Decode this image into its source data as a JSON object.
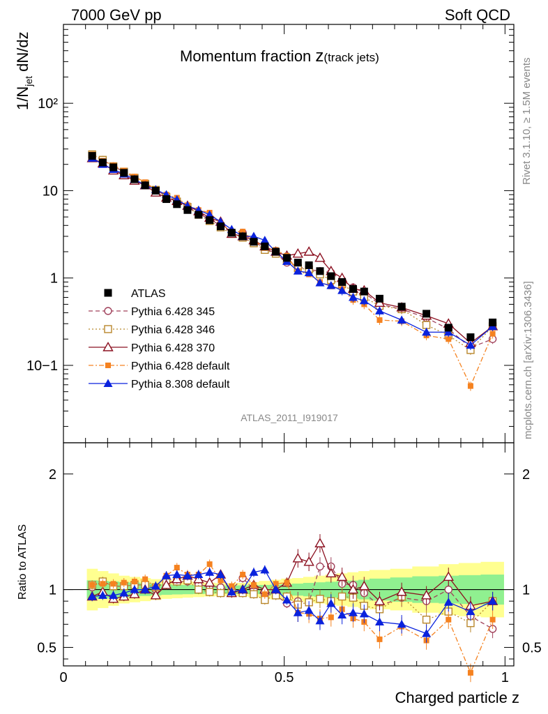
{
  "header": {
    "left": "7000 GeV pp",
    "right": "Soft QCD"
  },
  "side": {
    "rivet": "Rivet 3.1.10, ≥ 1.5M events",
    "mcplots": "mcplots.cern.ch [arXiv:1306.3436]"
  },
  "colors": {
    "atlas": "#000000",
    "p345": "#a0405a",
    "p346": "#b8862a",
    "p370": "#8b1020",
    "p6def": "#f58220",
    "p8def": "#0a22dd",
    "band_inner": "#90f090",
    "band_outer": "#ffff90"
  },
  "chart_data": [
    {
      "type": "line",
      "panel": "main",
      "title_main": "Momentum fraction ",
      "title_z": "z",
      "title_sub": "(track jets)",
      "ylabel": "1/N_jet dN/dz",
      "ylabel_main": "1/N",
      "ylabel_sub": "jet",
      "ylabel_tail": " dN/dz",
      "yscale": "log",
      "ylim": [
        0.013,
        800
      ],
      "xlim": [
        0,
        1.02
      ],
      "ytick_labels": [
        "10−1",
        "1",
        "10",
        "10²"
      ],
      "watermark": "ATLAS_2011_I919017",
      "legend_position": "bottom-left",
      "x": [
        0.065,
        0.089,
        0.113,
        0.137,
        0.161,
        0.185,
        0.209,
        0.233,
        0.257,
        0.281,
        0.306,
        0.331,
        0.356,
        0.381,
        0.406,
        0.431,
        0.456,
        0.481,
        0.506,
        0.531,
        0.556,
        0.581,
        0.606,
        0.631,
        0.656,
        0.681,
        0.716,
        0.766,
        0.822,
        0.872,
        0.922,
        0.972
      ],
      "series": [
        {
          "name": "ATLAS",
          "key": "atlas",
          "marker": "square-filled",
          "line": "none",
          "values": [
            25.0,
            21.0,
            18.5,
            16.0,
            13.5,
            11.5,
            10.0,
            8.0,
            7.0,
            6.0,
            5.3,
            4.6,
            3.9,
            3.3,
            3.0,
            2.6,
            2.3,
            2.0,
            1.7,
            1.5,
            1.4,
            1.2,
            1.05,
            0.9,
            0.75,
            0.7,
            0.58,
            0.47,
            0.39,
            0.27,
            0.21,
            0.31
          ]
        },
        {
          "name": "Pythia 6.428 345",
          "key": "p345",
          "marker": "circle-open",
          "line": "dashed",
          "values": [
            25.5,
            22.5,
            19.0,
            16.5,
            14.0,
            12.0,
            10.0,
            8.8,
            7.5,
            6.4,
            5.5,
            4.7,
            4.0,
            3.3,
            3.3,
            2.6,
            2.2,
            1.9,
            1.5,
            1.35,
            1.25,
            1.2,
            1.15,
            0.95,
            0.78,
            0.68,
            0.5,
            0.44,
            0.35,
            0.26,
            0.16,
            0.2
          ]
        },
        {
          "name": "Pythia 6.428 346",
          "key": "p346",
          "marker": "square-open",
          "line": "dotted",
          "values": [
            26.0,
            22.5,
            19.0,
            16.5,
            14.0,
            12.0,
            10.2,
            8.5,
            7.5,
            6.5,
            5.3,
            4.5,
            3.8,
            3.2,
            2.9,
            2.5,
            2.1,
            1.9,
            1.6,
            1.3,
            1.25,
            1.1,
            0.95,
            0.85,
            0.7,
            0.6,
            0.48,
            0.44,
            0.29,
            0.22,
            0.15,
            0.28
          ]
        },
        {
          "name": "Pythia 6.428 370",
          "key": "p370",
          "marker": "triangle-open",
          "line": "solid",
          "values": [
            23.5,
            20.5,
            17.0,
            15.0,
            13.0,
            11.5,
            9.5,
            8.3,
            7.6,
            6.7,
            5.8,
            4.9,
            4.4,
            3.2,
            3.0,
            2.7,
            2.3,
            2.0,
            1.8,
            1.9,
            2.0,
            1.7,
            1.2,
            1.0,
            0.75,
            0.72,
            0.52,
            0.46,
            0.37,
            0.3,
            0.18,
            0.28
          ]
        },
        {
          "name": "Pythia 6.428 default",
          "key": "p6def",
          "marker": "square-small-filled",
          "line": "dashdot",
          "values": [
            26.0,
            22.0,
            19.5,
            17.0,
            14.5,
            12.5,
            10.2,
            9.0,
            8.3,
            6.8,
            6.0,
            5.6,
            4.2,
            3.4,
            3.4,
            2.7,
            2.2,
            2.1,
            1.8,
            1.2,
            1.1,
            0.9,
            0.8,
            0.75,
            0.56,
            0.5,
            0.33,
            0.32,
            0.22,
            0.2,
            0.058,
            0.23
          ]
        },
        {
          "name": "Pythia 8.308 default",
          "key": "p8def",
          "marker": "triangle-filled",
          "line": "solid",
          "values": [
            23.5,
            20.0,
            17.5,
            15.5,
            13.5,
            11.5,
            10.3,
            9.0,
            7.9,
            6.7,
            6.0,
            5.3,
            4.4,
            3.6,
            3.0,
            3.0,
            2.7,
            2.0,
            1.55,
            1.2,
            1.15,
            0.88,
            0.82,
            0.72,
            0.6,
            0.55,
            0.42,
            0.33,
            0.24,
            0.24,
            0.17,
            0.28
          ]
        }
      ]
    },
    {
      "type": "line",
      "panel": "ratio",
      "ylabel": "Ratio to ATLAS",
      "xlabel": "Charged particle z",
      "ylim": [
        0.34,
        2.27
      ],
      "xlim": [
        0,
        1.02
      ],
      "ytick_labels": [
        "0.5",
        "1",
        "2"
      ],
      "xtick_labels": [
        "0",
        "0.5",
        "1"
      ],
      "band_x_edges": [
        0.053,
        0.077,
        0.101,
        0.125,
        0.149,
        0.173,
        0.197,
        0.221,
        0.245,
        0.269,
        0.293,
        0.318,
        0.343,
        0.368,
        0.393,
        0.418,
        0.443,
        0.468,
        0.493,
        0.518,
        0.543,
        0.568,
        0.593,
        0.618,
        0.643,
        0.668,
        0.693,
        0.74,
        0.79,
        0.85,
        0.895,
        0.945,
        0.997
      ],
      "band_inner_half": [
        0.08,
        0.075,
        0.07,
        0.065,
        0.06,
        0.055,
        0.05,
        0.045,
        0.042,
        0.04,
        0.038,
        0.036,
        0.035,
        0.035,
        0.036,
        0.038,
        0.04,
        0.043,
        0.047,
        0.052,
        0.058,
        0.063,
        0.068,
        0.073,
        0.078,
        0.085,
        0.095,
        0.105,
        0.115,
        0.12,
        0.125,
        0.13
      ],
      "band_outer_half": [
        0.18,
        0.16,
        0.14,
        0.12,
        0.11,
        0.1,
        0.09,
        0.08,
        0.075,
        0.07,
        0.065,
        0.06,
        0.055,
        0.055,
        0.058,
        0.065,
        0.075,
        0.085,
        0.095,
        0.1,
        0.11,
        0.12,
        0.13,
        0.14,
        0.15,
        0.16,
        0.17,
        0.18,
        0.2,
        0.22,
        0.23,
        0.24
      ],
      "x": [
        0.065,
        0.089,
        0.113,
        0.137,
        0.161,
        0.185,
        0.209,
        0.233,
        0.257,
        0.281,
        0.306,
        0.331,
        0.356,
        0.381,
        0.406,
        0.431,
        0.456,
        0.481,
        0.506,
        0.531,
        0.556,
        0.581,
        0.606,
        0.631,
        0.656,
        0.681,
        0.716,
        0.766,
        0.822,
        0.872,
        0.922,
        0.972
      ],
      "series": [
        {
          "key": "p345",
          "values": [
            1.02,
            1.07,
            1.03,
            1.03,
            1.04,
            1.04,
            1.0,
            1.1,
            1.07,
            1.07,
            1.04,
            1.03,
            1.02,
            1.0,
            1.1,
            1.0,
            0.96,
            0.95,
            0.88,
            0.9,
            0.89,
            1.2,
            1.2,
            1.05,
            1.04,
            0.97,
            0.86,
            0.93,
            0.9,
            1.0,
            0.77,
            0.66
          ]
        },
        {
          "key": "p346",
          "values": [
            1.04,
            1.07,
            1.03,
            1.03,
            1.04,
            1.04,
            1.02,
            1.06,
            1.07,
            1.08,
            1.0,
            0.98,
            0.97,
            0.97,
            0.97,
            0.96,
            0.91,
            0.95,
            0.94,
            0.87,
            0.89,
            0.92,
            0.9,
            0.94,
            0.93,
            0.86,
            0.83,
            0.94,
            0.74,
            0.81,
            0.71,
            0.9
          ]
        },
        {
          "key": "p370",
          "values": [
            0.94,
            0.98,
            0.92,
            0.94,
            0.96,
            1.0,
            0.95,
            1.04,
            1.09,
            1.12,
            1.09,
            1.06,
            1.13,
            0.97,
            1.0,
            1.04,
            1.0,
            1.0,
            1.06,
            1.27,
            1.24,
            1.4,
            1.14,
            1.11,
            1.0,
            1.03,
            0.9,
            0.98,
            0.95,
            1.11,
            0.86,
            0.9
          ]
        },
        {
          "key": "p6def",
          "values": [
            1.04,
            1.05,
            1.05,
            1.06,
            1.07,
            1.09,
            1.02,
            1.12,
            1.19,
            1.13,
            1.13,
            1.22,
            1.08,
            1.03,
            1.13,
            1.04,
            0.96,
            1.05,
            1.06,
            0.8,
            0.79,
            0.75,
            0.76,
            0.83,
            0.75,
            0.72,
            0.57,
            0.68,
            0.56,
            0.74,
            0.28,
            0.74
          ]
        },
        {
          "key": "p8def",
          "values": [
            0.94,
            0.95,
            0.95,
            0.97,
            1.0,
            1.0,
            1.03,
            1.12,
            1.13,
            1.12,
            1.13,
            1.15,
            1.13,
            0.98,
            1.0,
            1.15,
            1.17,
            1.0,
            0.91,
            0.8,
            0.82,
            0.73,
            0.88,
            0.78,
            0.8,
            0.79,
            0.72,
            0.7,
            0.62,
            0.89,
            0.81,
            0.9
          ]
        }
      ]
    }
  ]
}
